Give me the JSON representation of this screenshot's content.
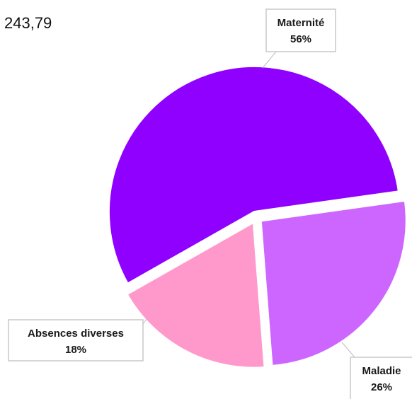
{
  "corner_value": "243,79",
  "chart_data": {
    "type": "pie",
    "title": "",
    "slices": [
      {
        "label": "Maternité",
        "value": 56,
        "percent_label": "56%",
        "color": "#9000ff"
      },
      {
        "label": "Maladie",
        "value": 26,
        "percent_label": "26%",
        "color": "#cc66ff"
      },
      {
        "label": "Absences diverses",
        "value": 18,
        "percent_label": "18%",
        "color": "#ff99cc"
      }
    ],
    "legend": "none",
    "exploded": true
  }
}
